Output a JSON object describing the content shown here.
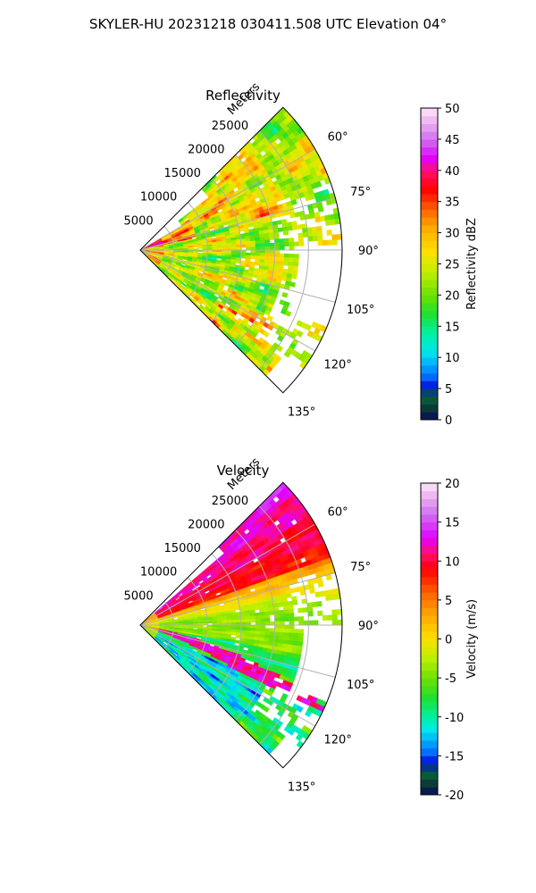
{
  "figure_title": "SKYLER-HU  20231218  030411.508 UTC Elevation 04°",
  "colors": {
    "grid": "#b0b0b0",
    "frame": "#000000",
    "background": "#ffffff"
  },
  "chart_data": [
    {
      "type": "heatmap",
      "subtype": "polar-sector",
      "title": "Reflectivity",
      "radial_label": "Meters",
      "radial_range": [
        0,
        30000
      ],
      "radial_ticks": [
        5000,
        10000,
        15000,
        20000,
        25000
      ],
      "radial_tick_labels": [
        "5000",
        "10000",
        "15000",
        "20000",
        "25000"
      ],
      "azimuth_range_deg": [
        45,
        135
      ],
      "azimuth_ticks_deg": [
        60,
        75,
        90,
        105,
        120,
        135
      ],
      "azimuth_tick_labels": [
        "60°",
        "75°",
        "90°",
        "105°",
        "120°",
        "135°"
      ],
      "grid": true,
      "colorbar": {
        "label": "Reflectivity dBZ",
        "range": [
          0,
          50
        ],
        "ticks": [
          0,
          5,
          10,
          15,
          20,
          25,
          30,
          35,
          40,
          45,
          50
        ],
        "tick_labels": [
          "0",
          "5",
          "10",
          "15",
          "20",
          "25",
          "30",
          "35",
          "40",
          "45",
          "50"
        ],
        "colormap_stops": [
          [
            0,
            "#0a0a5a"
          ],
          [
            2,
            "#0b3d36"
          ],
          [
            4,
            "#0a6a3a"
          ],
          [
            5,
            "#0000d8"
          ],
          [
            7,
            "#0070ff"
          ],
          [
            9,
            "#00b0ff"
          ],
          [
            11,
            "#00e8e8"
          ],
          [
            14,
            "#00f0a0"
          ],
          [
            17,
            "#20e030"
          ],
          [
            20,
            "#70e000"
          ],
          [
            24,
            "#c8ee00"
          ],
          [
            27,
            "#ffe000"
          ],
          [
            31,
            "#ffa800"
          ],
          [
            34,
            "#ff5a00"
          ],
          [
            37,
            "#ff0000"
          ],
          [
            40,
            "#ff1070"
          ],
          [
            42,
            "#e000ff"
          ],
          [
            45,
            "#d070f0"
          ],
          [
            48,
            "#f0b8f0"
          ],
          [
            50,
            "#fce8fc"
          ]
        ]
      },
      "field_description": "Mostly 18-32 dBZ echoes (green to yellow/orange) filling the sector, with 35+ dBZ red cells near the radar and along the southern edge; sparse echoes beyond 90°-100° at long range."
    },
    {
      "type": "heatmap",
      "subtype": "polar-sector",
      "title": "Velocity",
      "radial_label": "Meters",
      "radial_range": [
        0,
        30000
      ],
      "radial_ticks": [
        5000,
        10000,
        15000,
        20000,
        25000
      ],
      "radial_tick_labels": [
        "5000",
        "10000",
        "15000",
        "20000",
        "25000"
      ],
      "azimuth_range_deg": [
        45,
        135
      ],
      "azimuth_ticks_deg": [
        60,
        75,
        90,
        105,
        120,
        135
      ],
      "azimuth_tick_labels": [
        "60°",
        "75°",
        "90°",
        "105°",
        "120°",
        "135°"
      ],
      "grid": true,
      "colorbar": {
        "label": "Velocity (m/s)",
        "range": [
          -20,
          20
        ],
        "ticks": [
          -20,
          -15,
          -10,
          -5,
          0,
          5,
          10,
          15,
          20
        ],
        "tick_labels": [
          "-20",
          "-15",
          "-10",
          "-5",
          "0",
          "5",
          "10",
          "15",
          "20"
        ],
        "colormap_stops": [
          [
            -20,
            "#0a0a5a"
          ],
          [
            -18.5,
            "#0b3d36"
          ],
          [
            -17,
            "#0a6a3a"
          ],
          [
            -16,
            "#0000d8"
          ],
          [
            -14.5,
            "#0070ff"
          ],
          [
            -13,
            "#00b0ff"
          ],
          [
            -11.5,
            "#00e8e8"
          ],
          [
            -10,
            "#00f0a0"
          ],
          [
            -7.5,
            "#20e030"
          ],
          [
            -5,
            "#70e000"
          ],
          [
            -2.5,
            "#b8f000"
          ],
          [
            0,
            "#ffe000"
          ],
          [
            3,
            "#ffa800"
          ],
          [
            6,
            "#ff6000"
          ],
          [
            9,
            "#ff0000"
          ],
          [
            11,
            "#ff1070"
          ],
          [
            13,
            "#e000ff"
          ],
          [
            16,
            "#d070f0"
          ],
          [
            18.5,
            "#f0b8f0"
          ],
          [
            20,
            "#fce8fc"
          ]
        ]
      },
      "field_description": "Positive velocities (+10 to +15 m/s, red to magenta) along the northern edge near 50°-70°, near-zero yellow band around 80°, negative -5 m/s greens at 90°-105°, -10 m/s cyans toward 110°-125°, and positive red/magenta streaks near 100°-115°."
    }
  ]
}
